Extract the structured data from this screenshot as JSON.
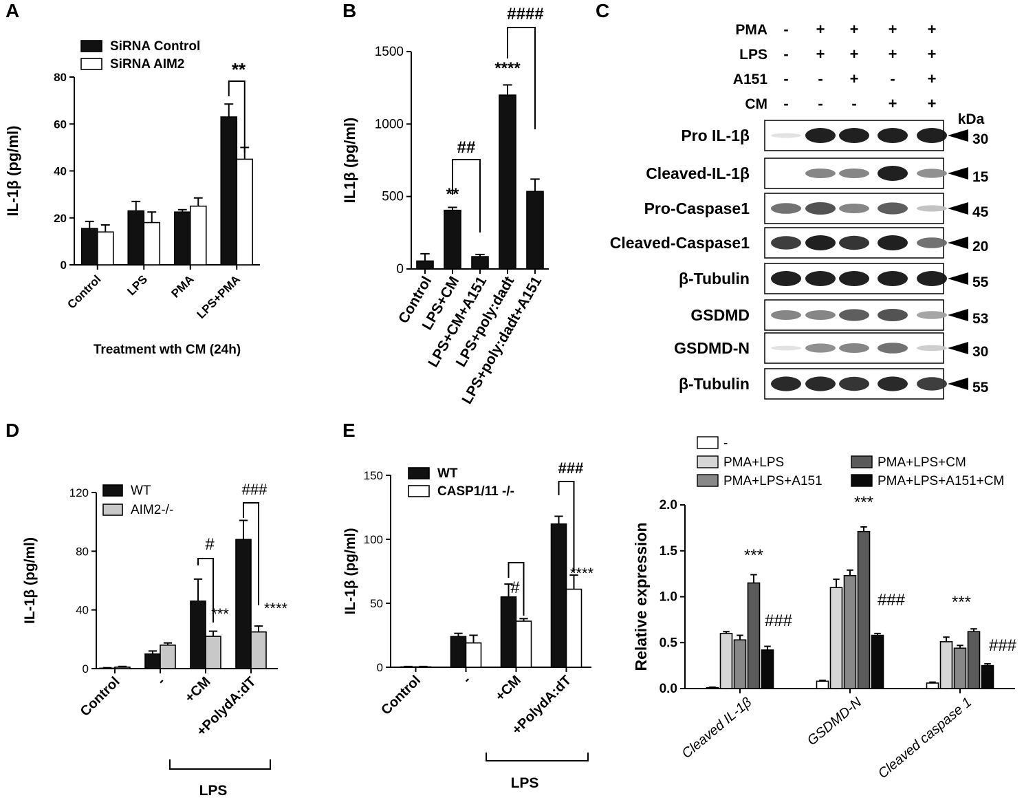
{
  "panels": {
    "a": {
      "letter": "A",
      "chart_data": {
        "type": "bar",
        "ylabel": "IL-1β (pg/ml)",
        "xlabel": "Treatment wth CM (24h)",
        "ylim": [
          0,
          80
        ],
        "yticks": [
          "0",
          "20",
          "40",
          "60",
          "80"
        ],
        "categories": [
          "Control",
          "LPS",
          "PMA",
          "LPS+PMA"
        ],
        "legend_position": "top-left",
        "series": [
          {
            "name": "SiRNA Control",
            "color": "#111111",
            "values": [
              15.5,
              23,
              22.5,
              63
            ],
            "errors": [
              3,
              4,
              1,
              5.5
            ]
          },
          {
            "name": "SiRNA AIM2",
            "color": "#ffffff",
            "values": [
              14,
              18,
              25,
              45
            ],
            "errors": [
              3,
              4.5,
              3.5,
              5
            ]
          }
        ],
        "annotations": [
          {
            "text": "**"
          }
        ]
      }
    },
    "b": {
      "letter": "B",
      "chart_data": {
        "type": "bar",
        "ylabel": "IL1β (pg/ml)",
        "ylim": [
          0,
          1500
        ],
        "yticks": [
          "0",
          "500",
          "1000",
          "1500"
        ],
        "categories": [
          "Control",
          "LPS+CM",
          "LPS+CM+A151",
          "LPS+poly:dadt",
          "LPS+poly:dadt+A151"
        ],
        "series": [
          {
            "color": "#111111",
            "values": [
              55,
              405,
              85,
              1200,
              535
            ],
            "errors": [
              50,
              20,
              15,
              70,
              85
            ]
          }
        ],
        "annotations": [
          {
            "text": "**"
          },
          {
            "text": "****"
          },
          {
            "text": "##"
          },
          {
            "text": "####"
          }
        ]
      }
    },
    "c": {
      "letter": "C",
      "conditions": [
        {
          "label": "PMA",
          "values": [
            "-",
            "+",
            "+",
            "+",
            "+"
          ]
        },
        {
          "label": "LPS",
          "values": [
            "-",
            "+",
            "+",
            "+",
            "+"
          ]
        },
        {
          "label": "A151",
          "values": [
            "-",
            "-",
            "+",
            "-",
            "+"
          ]
        },
        {
          "label": "CM",
          "values": [
            "-",
            "-",
            "-",
            "+",
            "+"
          ]
        }
      ],
      "kda_label": "kDa",
      "blots": [
        {
          "label": "Pro IL-1β",
          "kda": "30",
          "intensity": [
            0.05,
            1,
            1,
            1,
            1
          ]
        },
        {
          "label": "Cleaved-IL-1β",
          "kda": "15",
          "intensity": [
            0.02,
            0.5,
            0.5,
            1,
            0.45
          ]
        },
        {
          "label": "Pro-Caspase1",
          "kda": "45",
          "intensity": [
            0.6,
            0.75,
            0.5,
            0.7,
            0.2
          ]
        },
        {
          "label": "Cleaved-Caspase1",
          "kda": "20",
          "intensity": [
            0.85,
            1,
            0.9,
            1,
            0.6
          ]
        },
        {
          "label": "β-Tubulin",
          "kda": "55",
          "intensity": [
            1,
            1,
            1,
            1,
            1
          ]
        },
        {
          "label": "GSDMD",
          "kda": "53",
          "intensity": [
            0.5,
            0.5,
            0.7,
            0.75,
            0.35
          ]
        },
        {
          "label": "GSDMD-N",
          "kda": "30",
          "intensity": [
            0.05,
            0.45,
            0.5,
            0.6,
            0.15
          ]
        },
        {
          "label": "β-Tubulin",
          "kda": "55",
          "intensity": [
            0.95,
            0.95,
            0.9,
            0.95,
            0.85
          ]
        }
      ]
    },
    "d": {
      "letter": "D",
      "chart_data": {
        "type": "bar",
        "ylabel": "IL-1β (pg/ml)",
        "ylim": [
          0,
          120
        ],
        "yticks": [
          "0",
          "40",
          "80",
          "120"
        ],
        "categories": [
          "Control",
          "-",
          "+CM",
          "+PolydA:dT"
        ],
        "group_label": "LPS",
        "legend_position": "top-left",
        "series": [
          {
            "name": "WT",
            "color": "#111111",
            "values": [
              0.3,
              10,
              46,
              88
            ],
            "errors": [
              0.3,
              2,
              15,
              13
            ]
          },
          {
            "name": "AIM2-/-",
            "color": "#c8c8c8",
            "values": [
              1,
              16,
              22,
              25
            ],
            "errors": [
              0.5,
              1.5,
              3.5,
              4
            ]
          }
        ],
        "annotations": [
          {
            "text": "#"
          },
          {
            "text": "***"
          },
          {
            "text": "###"
          },
          {
            "text": "****"
          }
        ]
      }
    },
    "e": {
      "letter": "E",
      "chart_data": {
        "type": "bar",
        "ylabel": "IL-1β (pg/ml)",
        "ylim": [
          0,
          150
        ],
        "yticks": [
          "0",
          "50",
          "100",
          "150"
        ],
        "categories": [
          "Control",
          "-",
          "+CM",
          "+PolydA:dT"
        ],
        "group_label": "LPS",
        "legend_position": "top-left",
        "series": [
          {
            "name": "WT",
            "color": "#111111",
            "values": [
              0.3,
              24,
              55,
              112
            ],
            "errors": [
              0.3,
              2.5,
              10,
              6
            ]
          },
          {
            "name": "CASP1/11 -/-",
            "color": "#ffffff",
            "values": [
              0.3,
              19,
              36,
              61
            ],
            "errors": [
              0.3,
              6,
              2,
              11
            ]
          }
        ],
        "annotations": [
          {
            "text": "#"
          },
          {
            "text": "###"
          },
          {
            "text": "****"
          }
        ]
      }
    },
    "f": {
      "chart_data": {
        "type": "bar",
        "ylabel": "Relative expression",
        "ylim": [
          0,
          2
        ],
        "yticks": [
          "0.0",
          "0.5",
          "1.0",
          "1.5",
          "2.0"
        ],
        "categories": [
          "Cleaved IL-1β",
          "GSDMD-N",
          "Cleaved caspase 1"
        ],
        "legend_position": "top",
        "series": [
          {
            "name": "-",
            "color": "#ffffff",
            "values": [
              0.01,
              0.08,
              0.06
            ],
            "errors": [
              0.005,
              0.01,
              0.01
            ]
          },
          {
            "name": "PMA+LPS",
            "color": "#d6d6d6",
            "values": [
              0.6,
              1.1,
              0.51
            ],
            "errors": [
              0.02,
              0.09,
              0.05
            ]
          },
          {
            "name": "PMA+LPS+A151",
            "color": "#888888",
            "values": [
              0.53,
              1.23,
              0.44
            ],
            "errors": [
              0.05,
              0.06,
              0.03
            ]
          },
          {
            "name": "PMA+LPS+CM",
            "color": "#5a5a5a",
            "values": [
              1.15,
              1.71,
              0.62
            ],
            "errors": [
              0.09,
              0.05,
              0.03
            ]
          },
          {
            "name": "PMA+LPS+A151+CM",
            "color": "#0a0a0a",
            "values": [
              0.42,
              0.58,
              0.25
            ],
            "errors": [
              0.04,
              0.02,
              0.02
            ]
          }
        ],
        "annotations": [
          {
            "text": "***"
          },
          {
            "text": "###"
          }
        ]
      }
    }
  }
}
